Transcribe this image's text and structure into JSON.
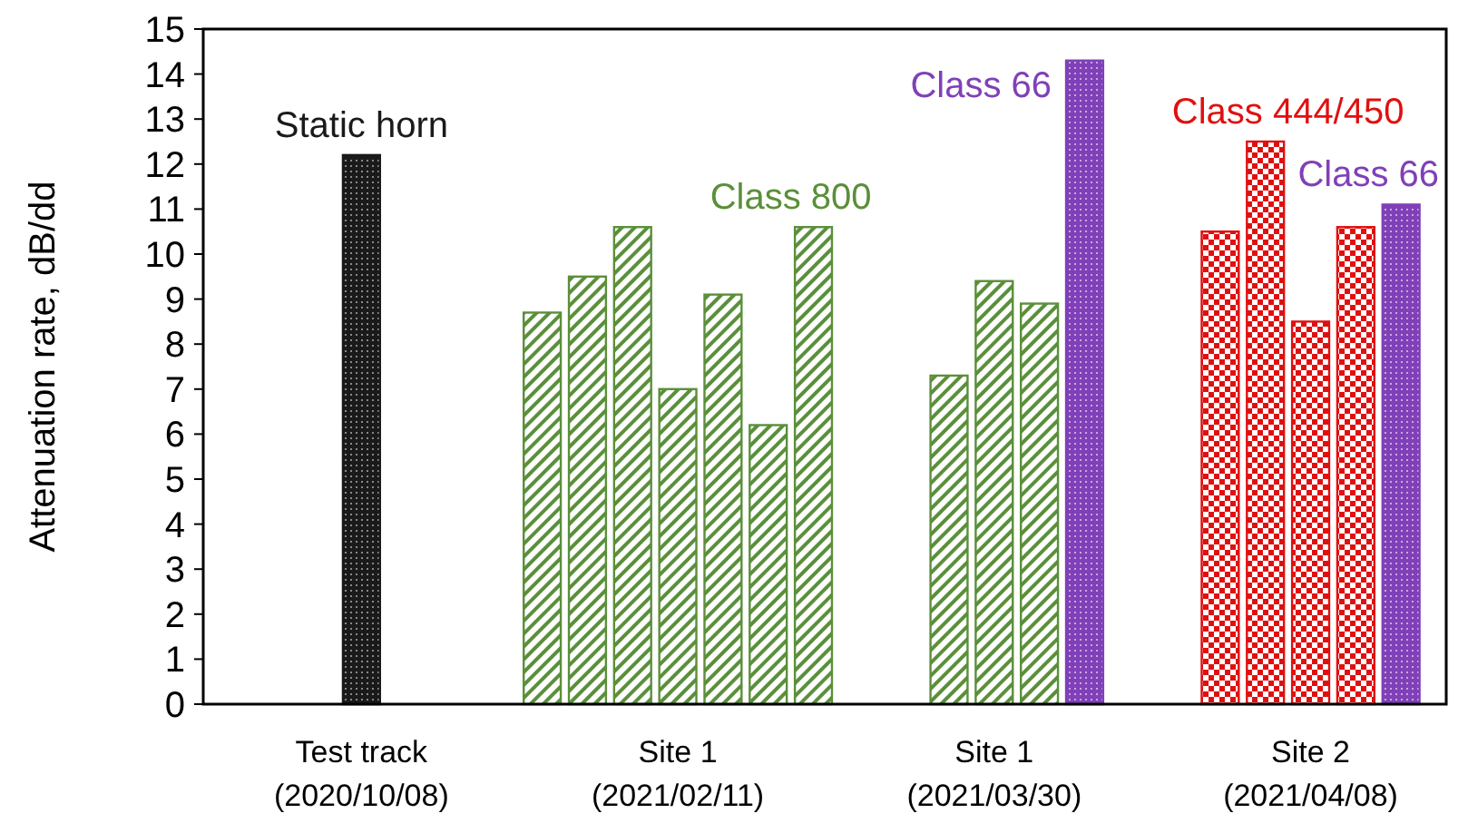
{
  "chart_data": {
    "type": "bar",
    "ylabel": "Attenuation rate, dB/dd",
    "ylim": [
      0,
      15
    ],
    "categories": [
      "Test track\n(2020/10/08)",
      null,
      null,
      null,
      null,
      null,
      null,
      "Site 1\n(2021/02/11)",
      null,
      null,
      null,
      null,
      null,
      null,
      "Site 1\n(2021/03/30)",
      null,
      null,
      null,
      null,
      null,
      null,
      "Site 2\n(2021/04/08)",
      null,
      null
    ],
    "yticks": [
      0,
      1,
      2,
      3,
      4,
      5,
      6,
      7,
      8,
      9,
      10,
      11,
      12,
      13,
      14,
      15
    ],
    "series": [
      {
        "name": "Static horn",
        "color": "#1a1a1a",
        "values": [
          12.2,
          null,
          null,
          null,
          null,
          null,
          null,
          null,
          null,
          null,
          null,
          null,
          null,
          null,
          null,
          null,
          null,
          null,
          null,
          null,
          null,
          null,
          null,
          null
        ]
      },
      {
        "name": "Class 800",
        "color": "#5b8f3a",
        "values": [
          null,
          null,
          null,
          null,
          8.7,
          9.5,
          10.6,
          7.0,
          9.1,
          6.2,
          10.6,
          null,
          null,
          7.3,
          9.4,
          8.9,
          null,
          null,
          null,
          null,
          null,
          null,
          null,
          null
        ]
      },
      {
        "name": "Class 66",
        "color": "#8040b8",
        "values": [
          null,
          null,
          null,
          null,
          null,
          null,
          null,
          null,
          null,
          null,
          null,
          null,
          null,
          null,
          null,
          null,
          14.3,
          null,
          null,
          null,
          null,
          null,
          null,
          11.1
        ]
      },
      {
        "name": "Class 444/450",
        "color": "#e01010",
        "values": [
          null,
          null,
          null,
          null,
          null,
          null,
          null,
          null,
          null,
          null,
          null,
          null,
          null,
          null,
          null,
          null,
          null,
          null,
          null,
          10.5,
          12.5,
          8.5,
          10.6,
          null
        ]
      }
    ]
  }
}
